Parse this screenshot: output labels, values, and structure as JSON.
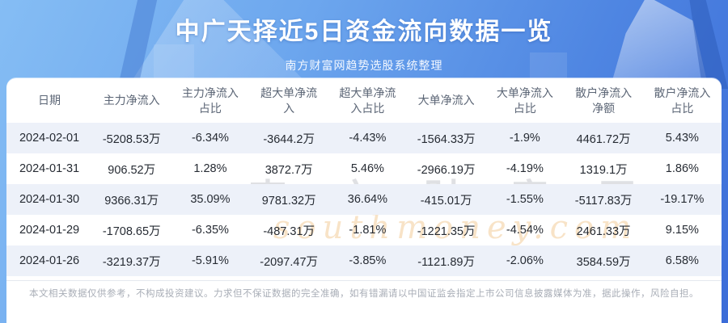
{
  "header": {
    "title": "中广天择近5日资金流向数据一览",
    "subtitle": "南方财富网趋势选股系统整理"
  },
  "chart_data": {
    "type": "table",
    "title": "中广天择近5日资金流向数据一览",
    "columns": [
      "日期",
      "主力净流入",
      "主力净流入占比",
      "超大单净流入",
      "超大单净流入占比",
      "大单净流入",
      "大单净流入占比",
      "散户净流入净额",
      "散户净流入占比"
    ],
    "rows": [
      [
        "2024-02-01",
        "-5208.53万",
        "-6.34%",
        "-3644.2万",
        "-4.43%",
        "-1564.33万",
        "-1.9%",
        "4461.72万",
        "5.43%"
      ],
      [
        "2024-01-31",
        "906.52万",
        "1.28%",
        "3872.7万",
        "5.46%",
        "-2966.19万",
        "-4.19%",
        "1319.1万",
        "1.86%"
      ],
      [
        "2024-01-30",
        "9366.31万",
        "35.09%",
        "9781.32万",
        "36.64%",
        "-415.01万",
        "-1.55%",
        "-5117.83万",
        "-19.17%"
      ],
      [
        "2024-01-29",
        "-1708.65万",
        "-6.35%",
        "-487.31万",
        "-1.81%",
        "-1221.35万",
        "-4.54%",
        "2461.33万",
        "9.15%"
      ],
      [
        "2024-01-26",
        "-3219.37万",
        "-5.91%",
        "-2097.47万",
        "-3.85%",
        "-1121.89万",
        "-2.06%",
        "3584.59万",
        "6.58%"
      ]
    ]
  },
  "watermark": {
    "cn": "南方财富网",
    "en": "southmoney.com"
  },
  "footer": {
    "disclaimer": "本文相关数据仅供参考，不构成投资建议。力求但不保证数据的完全准确，如有错漏请以中国证监会指定上市公司信息披露媒体为准，据此操作，风险自担。"
  },
  "colors": {
    "bg_gradient_start": "#85bdf4",
    "bg_gradient_end": "#3b6cd8",
    "card_bg": "#ffffff",
    "row_alt_bg": "#edf1f9",
    "header_text": "#5c6676",
    "cell_text": "#262b33",
    "disclaimer_text": "#a9aeb7",
    "title_text": "#ffffff"
  }
}
